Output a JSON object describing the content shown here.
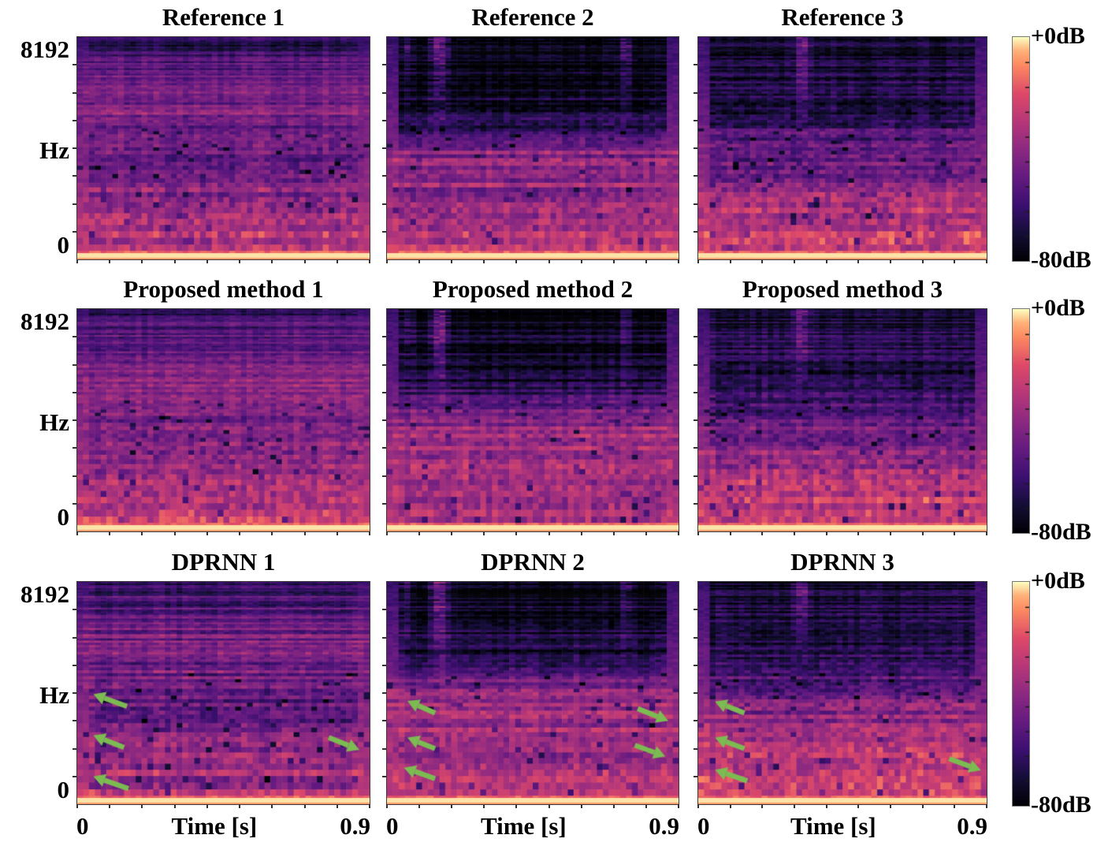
{
  "figure": {
    "background": "#ffffff",
    "arrow_color": "#7cba52",
    "text_color": "#000000"
  },
  "chart_data": {
    "type": "heatmap",
    "subtype": "audio-spectrogram-comparison-grid",
    "colormap": "magma",
    "grid_rows": 3,
    "grid_cols": 3,
    "row_groups": [
      "Reference",
      "Proposed method",
      "DPRNN"
    ],
    "x_axis": {
      "label": "Time [s]",
      "tick_labels": [
        "0",
        "0.9"
      ],
      "range_s": [
        0,
        0.9
      ]
    },
    "y_axis": {
      "label": "Hz",
      "tick_labels": [
        "8192",
        "0"
      ],
      "range_hz": [
        0,
        8192
      ]
    },
    "colorbar": {
      "top_label": "+0dB",
      "bottom_label": "-80dB",
      "range_db": [
        -80,
        0
      ],
      "stops": [
        [
          0,
          "#000004"
        ],
        [
          0.125,
          "#140e36"
        ],
        [
          0.25,
          "#3b0f70"
        ],
        [
          0.375,
          "#641a80"
        ],
        [
          0.5,
          "#8c2981"
        ],
        [
          0.625,
          "#b73779"
        ],
        [
          0.75,
          "#de4968"
        ],
        [
          0.875,
          "#fc8961"
        ],
        [
          0.94,
          "#feb078"
        ],
        [
          1,
          "#fcfdbf"
        ]
      ]
    },
    "panels": [
      {
        "title": "Reference 1",
        "seed": 101,
        "profile": [
          [
            0,
            0.16
          ],
          [
            0.08,
            0.27
          ],
          [
            0.2,
            0.38
          ],
          [
            0.32,
            0.46
          ],
          [
            0.45,
            0.37
          ],
          [
            0.58,
            0.42
          ],
          [
            0.72,
            0.5
          ],
          [
            0.85,
            0.58
          ],
          [
            1,
            0.62
          ]
        ],
        "stripe": 0.1,
        "noise": 0.2,
        "streaks": [],
        "arrows": []
      },
      {
        "title": "Reference 2",
        "seed": 202,
        "profile": [
          [
            0,
            0.03
          ],
          [
            0.15,
            0.04
          ],
          [
            0.3,
            0.08
          ],
          [
            0.4,
            0.2
          ],
          [
            0.48,
            0.45
          ],
          [
            0.58,
            0.52
          ],
          [
            0.7,
            0.5
          ],
          [
            0.82,
            0.58
          ],
          [
            1,
            0.6
          ]
        ],
        "stripe": 0.12,
        "noise": 0.18,
        "streaks": [
          {
            "x": 0.06,
            "w": 0.035,
            "a": 0.22,
            "d": 0.4
          },
          {
            "x": 0.17,
            "w": 0.05,
            "a": 0.48,
            "d": 0.5
          },
          {
            "x": 0.81,
            "w": 0.035,
            "a": 0.3,
            "d": 0.45
          }
        ],
        "arrows": []
      },
      {
        "title": "Reference 3",
        "seed": 303,
        "profile": [
          [
            0,
            0.08
          ],
          [
            0.12,
            0.13
          ],
          [
            0.22,
            0.16
          ],
          [
            0.3,
            0.12
          ],
          [
            0.42,
            0.28
          ],
          [
            0.55,
            0.38
          ],
          [
            0.68,
            0.5
          ],
          [
            0.8,
            0.6
          ],
          [
            0.92,
            0.66
          ],
          [
            1,
            0.68
          ]
        ],
        "stripe": 0.1,
        "noise": 0.2,
        "streaks": [
          {
            "x": 0.35,
            "w": 0.04,
            "a": 0.38,
            "d": 0.45
          }
        ],
        "arrows": []
      },
      {
        "title": "Proposed method 1",
        "seed": 404,
        "profile": [
          [
            0,
            0.18
          ],
          [
            0.08,
            0.28
          ],
          [
            0.2,
            0.4
          ],
          [
            0.32,
            0.46
          ],
          [
            0.45,
            0.4
          ],
          [
            0.58,
            0.46
          ],
          [
            0.72,
            0.54
          ],
          [
            0.85,
            0.62
          ],
          [
            1,
            0.65
          ]
        ],
        "stripe": 0.1,
        "noise": 0.2,
        "streaks": [],
        "arrows": []
      },
      {
        "title": "Proposed method 2",
        "seed": 505,
        "profile": [
          [
            0,
            0.04
          ],
          [
            0.15,
            0.05
          ],
          [
            0.3,
            0.1
          ],
          [
            0.4,
            0.24
          ],
          [
            0.48,
            0.48
          ],
          [
            0.58,
            0.54
          ],
          [
            0.7,
            0.52
          ],
          [
            0.82,
            0.6
          ],
          [
            1,
            0.62
          ]
        ],
        "stripe": 0.12,
        "noise": 0.18,
        "streaks": [
          {
            "x": 0.06,
            "w": 0.035,
            "a": 0.22,
            "d": 0.4
          },
          {
            "x": 0.17,
            "w": 0.05,
            "a": 0.46,
            "d": 0.5
          },
          {
            "x": 0.81,
            "w": 0.035,
            "a": 0.28,
            "d": 0.45
          }
        ],
        "arrows": []
      },
      {
        "title": "Proposed method 3",
        "seed": 606,
        "profile": [
          [
            0,
            0.09
          ],
          [
            0.12,
            0.14
          ],
          [
            0.22,
            0.18
          ],
          [
            0.3,
            0.14
          ],
          [
            0.42,
            0.3
          ],
          [
            0.55,
            0.42
          ],
          [
            0.68,
            0.54
          ],
          [
            0.8,
            0.63
          ],
          [
            0.92,
            0.68
          ],
          [
            1,
            0.7
          ]
        ],
        "stripe": 0.1,
        "noise": 0.2,
        "streaks": [
          {
            "x": 0.35,
            "w": 0.04,
            "a": 0.36,
            "d": 0.45
          }
        ],
        "arrows": []
      },
      {
        "title": "DPRNN 1",
        "seed": 707,
        "profile": [
          [
            0,
            0.17
          ],
          [
            0.08,
            0.28
          ],
          [
            0.2,
            0.4
          ],
          [
            0.32,
            0.44
          ],
          [
            0.45,
            0.36
          ],
          [
            0.58,
            0.4
          ],
          [
            0.72,
            0.46
          ],
          [
            0.85,
            0.54
          ],
          [
            1,
            0.58
          ]
        ],
        "stripe": 0.13,
        "noise": 0.2,
        "streaks": [],
        "arrows": [
          {
            "tail": [
              0.17,
              0.56
            ],
            "tip": [
              0.055,
              0.505
            ]
          },
          {
            "tail": [
              0.16,
              0.745
            ],
            "tip": [
              0.055,
              0.69
            ]
          },
          {
            "tail": [
              0.175,
              0.93
            ],
            "tip": [
              0.055,
              0.875
            ]
          },
          {
            "tail": [
              0.86,
              0.7
            ],
            "tip": [
              0.965,
              0.755
            ]
          }
        ]
      },
      {
        "title": "DPRNN 2",
        "seed": 808,
        "profile": [
          [
            0,
            0.05
          ],
          [
            0.15,
            0.07
          ],
          [
            0.3,
            0.13
          ],
          [
            0.4,
            0.3
          ],
          [
            0.48,
            0.5
          ],
          [
            0.58,
            0.55
          ],
          [
            0.7,
            0.53
          ],
          [
            0.82,
            0.6
          ],
          [
            1,
            0.62
          ]
        ],
        "stripe": 0.12,
        "noise": 0.18,
        "streaks": [
          {
            "x": 0.06,
            "w": 0.035,
            "a": 0.2,
            "d": 0.4
          },
          {
            "x": 0.17,
            "w": 0.05,
            "a": 0.44,
            "d": 0.5
          },
          {
            "x": 0.81,
            "w": 0.035,
            "a": 0.26,
            "d": 0.45
          }
        ],
        "arrows": [
          {
            "tail": [
              0.165,
              0.59
            ],
            "tip": [
              0.07,
              0.535
            ]
          },
          {
            "tail": [
              0.165,
              0.75
            ],
            "tip": [
              0.07,
              0.7
            ]
          },
          {
            "tail": [
              0.165,
              0.885
            ],
            "tip": [
              0.058,
              0.835
            ]
          },
          {
            "tail": [
              0.86,
              0.57
            ],
            "tip": [
              0.965,
              0.625
            ]
          },
          {
            "tail": [
              0.85,
              0.735
            ],
            "tip": [
              0.955,
              0.785
            ]
          }
        ]
      },
      {
        "title": "DPRNN 3",
        "seed": 909,
        "profile": [
          [
            0,
            0.09
          ],
          [
            0.12,
            0.14
          ],
          [
            0.22,
            0.18
          ],
          [
            0.3,
            0.15
          ],
          [
            0.42,
            0.32
          ],
          [
            0.55,
            0.45
          ],
          [
            0.68,
            0.58
          ],
          [
            0.8,
            0.66
          ],
          [
            0.92,
            0.7
          ],
          [
            1,
            0.72
          ]
        ],
        "stripe": 0.1,
        "noise": 0.2,
        "streaks": [
          {
            "x": 0.35,
            "w": 0.04,
            "a": 0.34,
            "d": 0.45
          }
        ],
        "arrows": [
          {
            "tail": [
              0.16,
              0.59
            ],
            "tip": [
              0.058,
              0.538
            ]
          },
          {
            "tail": [
              0.16,
              0.75
            ],
            "tip": [
              0.058,
              0.7
            ]
          },
          {
            "tail": [
              0.17,
              0.895
            ],
            "tip": [
              0.058,
              0.845
            ]
          },
          {
            "tail": [
              0.87,
              0.795
            ],
            "tip": [
              0.98,
              0.848
            ]
          }
        ]
      }
    ]
  }
}
